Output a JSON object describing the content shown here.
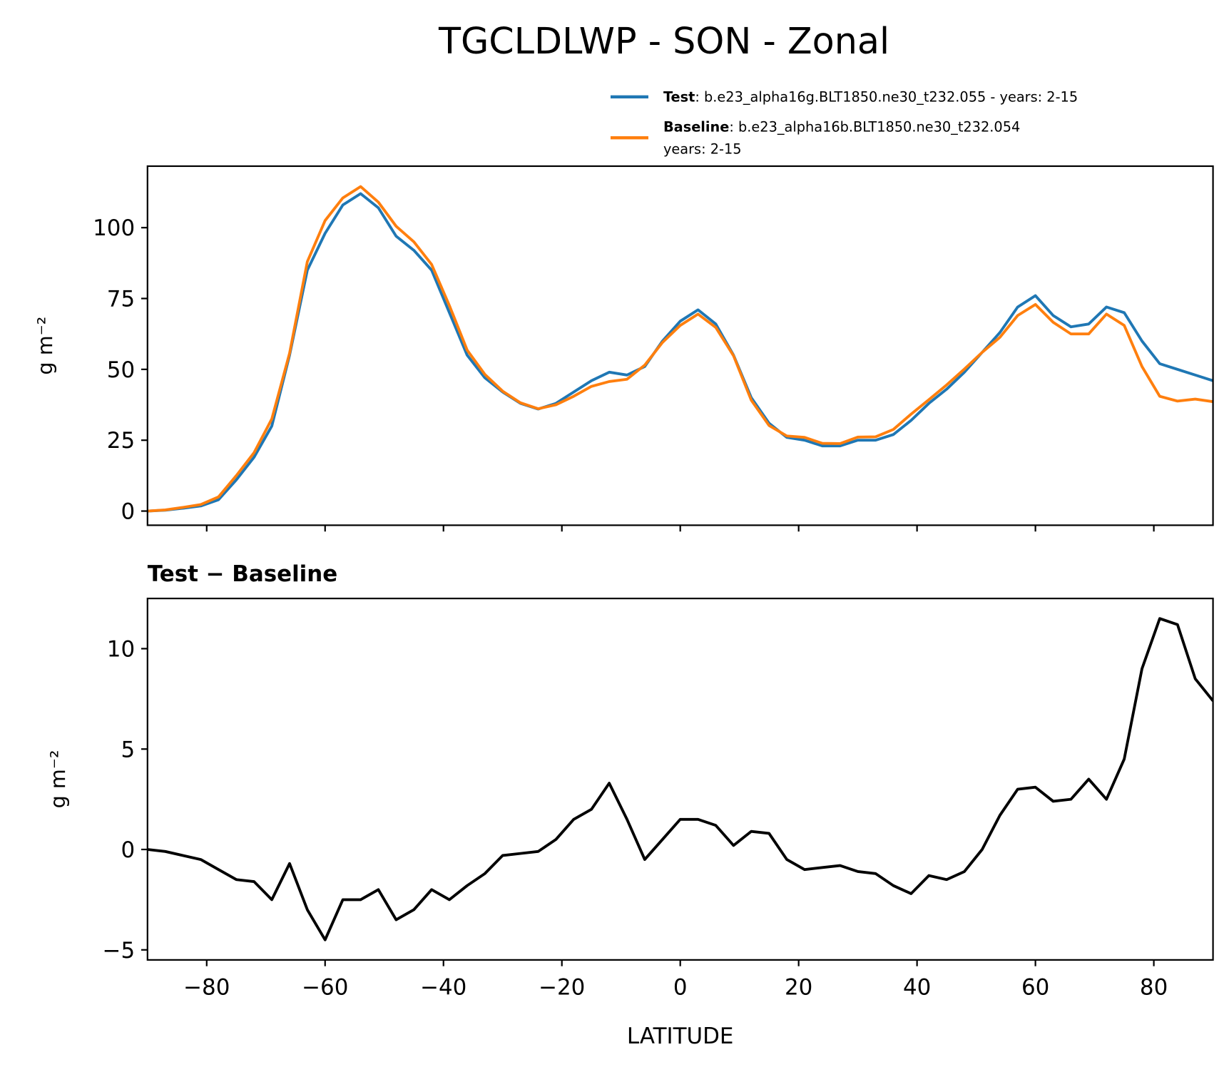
{
  "title": "TGCLDLWP - SON - Zonal",
  "chart_data": [
    {
      "type": "line",
      "ylabel": "g m⁻²",
      "x": [
        -90,
        -87,
        -84,
        -81,
        -78,
        -75,
        -72,
        -69,
        -66,
        -63,
        -60,
        -57,
        -54,
        -51,
        -48,
        -45,
        -42,
        -39,
        -36,
        -33,
        -30,
        -27,
        -24,
        -21,
        -18,
        -15,
        -12,
        -9,
        -6,
        -3,
        0,
        3,
        6,
        9,
        12,
        15,
        18,
        21,
        24,
        27,
        30,
        33,
        36,
        39,
        42,
        45,
        48,
        51,
        54,
        57,
        60,
        63,
        66,
        69,
        72,
        75,
        78,
        81,
        84,
        87,
        90
      ],
      "xlim": [
        -90,
        90
      ],
      "xticks": [
        -80,
        -60,
        -40,
        -20,
        0,
        20,
        40,
        60,
        80
      ],
      "ylim": [
        -5,
        121.7
      ],
      "yticks": [
        0,
        25,
        50,
        75,
        100
      ],
      "series": [
        {
          "name": "Test",
          "label": [
            ": b.e23_alpha16g.BLT1850.ne30_t232.055 - years: 2-15"
          ],
          "color": "#1f77b4",
          "values": [
            0,
            0.3,
            1,
            1.8,
            4,
            11,
            19,
            30,
            55,
            85,
            98,
            108,
            112,
            107,
            97,
            92,
            85,
            70,
            55,
            47,
            42,
            38,
            36,
            38,
            42,
            46,
            49,
            48,
            51,
            60,
            67,
            71,
            66,
            55,
            40,
            31,
            26,
            25,
            23,
            23,
            25,
            25,
            27,
            32,
            38,
            43,
            49,
            56,
            63,
            72,
            76,
            69,
            65,
            66,
            72,
            70,
            60,
            52,
            50,
            48,
            46
          ]
        },
        {
          "name": "Baseline",
          "label": [
            ": b.e23_alpha16b.BLT1850.ne30_t232.054",
            "years: 2-15"
          ],
          "color": "#ff7f0e",
          "values": [
            0,
            0.4,
            1.3,
            2.3,
            5,
            12.5,
            20.6,
            32.5,
            55.7,
            88,
            102.5,
            110.5,
            114.5,
            109,
            100.5,
            95,
            87,
            72.5,
            56.8,
            48.2,
            42.3,
            38.2,
            36.1,
            37.5,
            40.5,
            44,
            45.7,
            46.5,
            51.5,
            59.5,
            65.5,
            69.5,
            64.8,
            54.8,
            39.1,
            30.2,
            26.5,
            26,
            23.9,
            23.8,
            26.1,
            26.2,
            28.8,
            34.2,
            39.3,
            44.5,
            50.1,
            56,
            61.3,
            69,
            72.9,
            66.6,
            62.5,
            62.5,
            69.5,
            65.5,
            51,
            40.5,
            38.8,
            39.5,
            38.6
          ]
        }
      ]
    },
    {
      "type": "line",
      "title": "Test − Baseline",
      "xlabel": "LATITUDE",
      "ylabel": "g m⁻²",
      "x": [
        -90,
        -87,
        -84,
        -81,
        -78,
        -75,
        -72,
        -69,
        -66,
        -63,
        -60,
        -57,
        -54,
        -51,
        -48,
        -45,
        -42,
        -39,
        -36,
        -33,
        -30,
        -27,
        -24,
        -21,
        -18,
        -15,
        -12,
        -9,
        -6,
        -3,
        0,
        3,
        6,
        9,
        12,
        15,
        18,
        21,
        24,
        27,
        30,
        33,
        36,
        39,
        42,
        45,
        48,
        51,
        54,
        57,
        60,
        63,
        66,
        69,
        72,
        75,
        78,
        81,
        84,
        87,
        90
      ],
      "xlim": [
        -90,
        90
      ],
      "xticks": [
        {
          "value": -80,
          "label": "−80"
        },
        {
          "value": -60,
          "label": "−60"
        },
        {
          "value": -40,
          "label": "−40"
        },
        {
          "value": -20,
          "label": "−20"
        },
        0,
        20,
        40,
        60,
        80
      ],
      "ylim": [
        -5.5,
        12.5
      ],
      "yticks": [
        {
          "value": -5,
          "label": "−5"
        },
        0,
        5,
        10
      ],
      "series": [
        {
          "color": "#000000",
          "values": [
            0,
            -0.1,
            -0.3,
            -0.5,
            -1,
            -1.5,
            -1.6,
            -2.5,
            -0.7,
            -3,
            -4.5,
            -2.5,
            -2.5,
            -2,
            -3.5,
            -3,
            -2,
            -2.5,
            -1.8,
            -1.2,
            -0.3,
            -0.2,
            -0.1,
            0.5,
            1.5,
            2,
            3.3,
            1.5,
            -0.5,
            0.5,
            1.5,
            1.5,
            1.2,
            0.2,
            0.9,
            0.8,
            -0.5,
            -1,
            -0.9,
            -0.8,
            -1.1,
            -1.2,
            -1.8,
            -2.2,
            -1.3,
            -1.5,
            -1.1,
            0,
            1.7,
            3,
            3.1,
            2.4,
            2.5,
            3.5,
            2.5,
            4.5,
            9,
            11.5,
            11.2,
            8.5,
            7.4
          ]
        }
      ]
    }
  ]
}
